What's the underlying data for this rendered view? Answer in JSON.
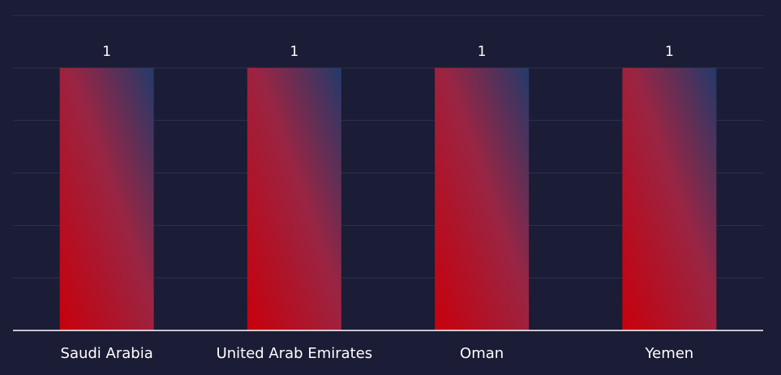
{
  "chart_data": {
    "type": "bar",
    "categories": [
      "Saudi Arabia",
      "United Arab Emirates",
      "Oman",
      "Yemen"
    ],
    "values": [
      1,
      1,
      1,
      1
    ],
    "data_labels": [
      "1",
      "1",
      "1",
      "1"
    ],
    "title": "",
    "xlabel": "",
    "ylabel": "",
    "ylim": [
      0,
      1.2
    ],
    "grid": true,
    "legend": "none"
  },
  "colors": {
    "background": "#1b1c35",
    "grid": "#2f3150",
    "axis": "#ffffff",
    "text": "#ffffff",
    "bar_gradient_bottom": "#c8000c",
    "bar_gradient_mid": "#9a2543",
    "bar_gradient_top": "#233a6a"
  }
}
